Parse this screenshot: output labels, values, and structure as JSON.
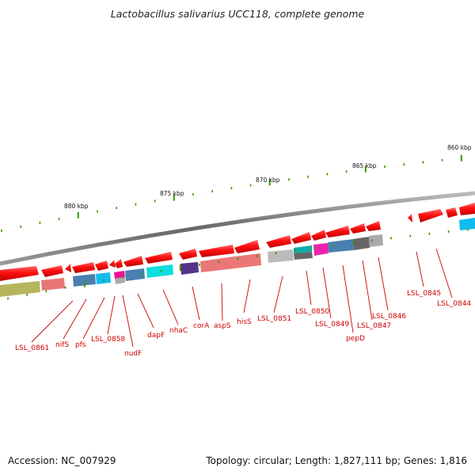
{
  "title": "Lactobacillus salivarius UCC118, complete genome",
  "footer": {
    "accession": "Accession: NC_007929",
    "summary": "Topology: circular; Length: 1,827,111 bp; Genes: 1,816"
  },
  "colors": {
    "arrow_red": "#ee0000",
    "label_red": "#cc0000",
    "tick_green": "#339900",
    "backbone": "#888888"
  },
  "scale": {
    "ticks": [
      {
        "label": "860 kbp"
      },
      {
        "label": "865 kbp"
      },
      {
        "label": "870 kbp"
      },
      {
        "label": "875 kbp"
      },
      {
        "label": "880 kbp"
      }
    ]
  },
  "genes": [
    {
      "label": "LSL_0861"
    },
    {
      "label": "nifS"
    },
    {
      "label": "pfs"
    },
    {
      "label": "LSL_0858"
    },
    {
      "label": "nudF"
    },
    {
      "label": "dapF"
    },
    {
      "label": "nhaC"
    },
    {
      "label": "corA"
    },
    {
      "label": "aspS"
    },
    {
      "label": "hisS"
    },
    {
      "label": "LSL_0851"
    },
    {
      "label": "LSL_0850"
    },
    {
      "label": "LSL_0849"
    },
    {
      "label": "pepD"
    },
    {
      "label": "LSL_0847"
    },
    {
      "label": "LSL_0846"
    },
    {
      "label": "LSL_0845"
    },
    {
      "label": "LSL_0844"
    }
  ],
  "cog_colors": [
    "#b5b55e",
    "#ea7777",
    "#4a7fb0",
    "#11bbee",
    "#ee1199",
    "#aaaaaa",
    "#4a7fb0",
    "#11dddd",
    "#553388",
    "#ea7777",
    "#ea7777",
    "#bbbbbb",
    "#11aaaa",
    "#ee22aa",
    "#4a7fb0",
    "#666666",
    "#aaaaaa",
    "#11bbee"
  ]
}
